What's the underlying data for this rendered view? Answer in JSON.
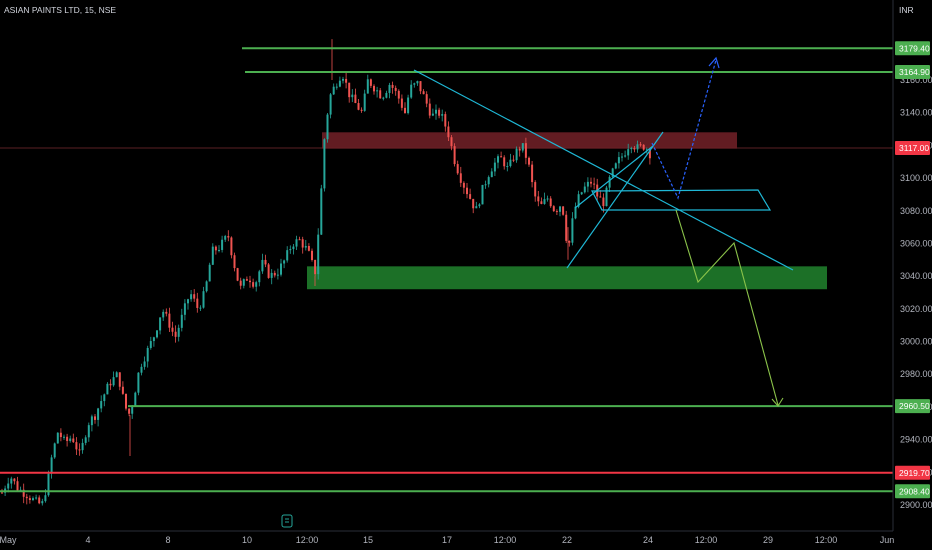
{
  "header": {
    "symbol_title": "ASIAN PAINTS LTD, 15, NSE",
    "currency": "INR"
  },
  "colors": {
    "background": "#000000",
    "up_candle": "#26a69a",
    "down_candle": "#ef5350",
    "support_resistance_line": "#4caf50",
    "red_level_line": "#f23645",
    "trendline": "#1fb8d6",
    "bullish_arrow": "#2962ff",
    "bearish_arrow": "#8bc34a",
    "supply_zone": "#6d1f26",
    "demand_zone": "#1e7a2a",
    "axis_text": "#b2b5be"
  },
  "chart_data": {
    "type": "candlestick",
    "title": "ASIAN PAINTS LTD, 15, NSE",
    "currency": "INR",
    "interval": "15",
    "exchange": "NSE",
    "y_ticks": [
      2900,
      2920,
      2940,
      2960,
      2980,
      3000,
      3020,
      3040,
      3060,
      3080,
      3100,
      3120,
      3140,
      3160
    ],
    "x_ticks": [
      "May",
      "4",
      "8",
      "10",
      "12:00",
      "15",
      "17",
      "12:00",
      "22",
      "24",
      "12:00",
      "29",
      "12:00",
      "Jun"
    ],
    "ylim": [
      2895,
      3190
    ],
    "grid": false,
    "horizontal_levels": [
      {
        "label": "3179.40",
        "value": 3179.4,
        "color": "#4caf50"
      },
      {
        "label": "3164.90",
        "value": 3164.9,
        "color": "#4caf50"
      },
      {
        "label": "2960.50",
        "value": 2960.5,
        "color": "#4caf50"
      },
      {
        "label": "2919.70",
        "value": 2919.7,
        "color": "#f23645"
      },
      {
        "label": "2908.40",
        "value": 2908.4,
        "color": "#4caf50"
      }
    ],
    "last_price": {
      "label": "3117.00",
      "value": 3117.0
    },
    "zones": [
      {
        "kind": "supply",
        "top": 3128,
        "bottom": 3118
      },
      {
        "kind": "demand",
        "top": 3046,
        "bottom": 3032
      }
    ],
    "price_path": [
      [
        0,
        2905
      ],
      [
        10,
        2918
      ],
      [
        18,
        2910
      ],
      [
        28,
        2906
      ],
      [
        35,
        2902
      ],
      [
        42,
        2900
      ],
      [
        48,
        2915
      ],
      [
        52,
        2930
      ],
      [
        58,
        2945
      ],
      [
        65,
        2938
      ],
      [
        72,
        2942
      ],
      [
        80,
        2930
      ],
      [
        88,
        2950
      ],
      [
        95,
        2955
      ],
      [
        102,
        2965
      ],
      [
        110,
        2975
      ],
      [
        118,
        2980
      ],
      [
        125,
        2960
      ],
      [
        130,
        2955
      ],
      [
        140,
        2985
      ],
      [
        148,
        2995
      ],
      [
        155,
        3005
      ],
      [
        162,
        3020
      ],
      [
        170,
        3010
      ],
      [
        175,
        3002
      ],
      [
        182,
        3015
      ],
      [
        190,
        3030
      ],
      [
        198,
        3020
      ],
      [
        205,
        3030
      ],
      [
        212,
        3055
      ],
      [
        220,
        3058
      ],
      [
        228,
        3065
      ],
      [
        235,
        3045
      ],
      [
        240,
        3032
      ],
      [
        248,
        3040
      ],
      [
        255,
        3035
      ],
      [
        262,
        3048
      ],
      [
        270,
        3040
      ],
      [
        278,
        3043
      ],
      [
        285,
        3050
      ],
      [
        292,
        3060
      ],
      [
        300,
        3062
      ],
      [
        308,
        3055
      ],
      [
        315,
        3042
      ],
      [
        320,
        3080
      ],
      [
        325,
        3130
      ],
      [
        330,
        3150
      ],
      [
        336,
        3158
      ],
      [
        342,
        3165
      ],
      [
        350,
        3150
      ],
      [
        356,
        3145
      ],
      [
        362,
        3140
      ],
      [
        368,
        3160
      ],
      [
        375,
        3155
      ],
      [
        382,
        3150
      ],
      [
        390,
        3158
      ],
      [
        398,
        3150
      ],
      [
        405,
        3140
      ],
      [
        410,
        3155
      ],
      [
        418,
        3158
      ],
      [
        425,
        3148
      ],
      [
        432,
        3138
      ],
      [
        440,
        3140
      ],
      [
        448,
        3128
      ],
      [
        455,
        3110
      ],
      [
        462,
        3098
      ],
      [
        470,
        3088
      ],
      [
        476,
        3080
      ],
      [
        482,
        3092
      ],
      [
        490,
        3105
      ],
      [
        496,
        3110
      ],
      [
        502,
        3112
      ],
      [
        508,
        3105
      ],
      [
        515,
        3115
      ],
      [
        522,
        3120
      ],
      [
        528,
        3110
      ],
      [
        534,
        3090
      ],
      [
        540,
        3082
      ],
      [
        548,
        3088
      ],
      [
        555,
        3080
      ],
      [
        562,
        3085
      ],
      [
        568,
        3055
      ],
      [
        574,
        3080
      ],
      [
        580,
        3090
      ],
      [
        586,
        3095
      ],
      [
        592,
        3098
      ],
      [
        598,
        3088
      ],
      [
        604,
        3085
      ],
      [
        610,
        3100
      ],
      [
        618,
        3110
      ],
      [
        624,
        3115
      ],
      [
        630,
        3122
      ],
      [
        638,
        3118
      ],
      [
        645,
        3120
      ],
      [
        650,
        3115
      ]
    ]
  }
}
